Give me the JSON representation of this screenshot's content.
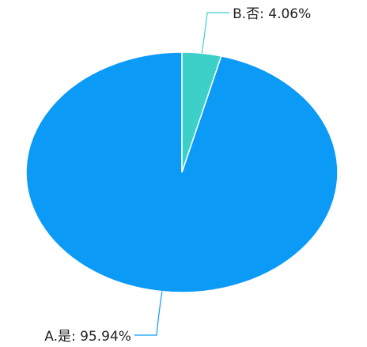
{
  "chart_data": {
    "type": "pie",
    "categories": [
      "A.是: 95.94%",
      "B.否: 4.06%"
    ],
    "values": [
      95.94,
      4.06
    ],
    "colors": [
      "#0b9bf7",
      "#3dd0c8"
    ]
  }
}
